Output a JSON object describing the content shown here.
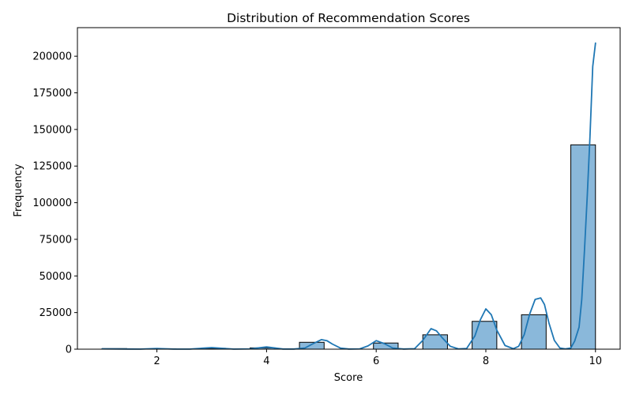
{
  "chart_data": {
    "type": "bar",
    "title": "Distribution of Recommendation Scores",
    "xlabel": "Score",
    "ylabel": "Frequency",
    "xlim": [
      0.55,
      10.45
    ],
    "ylim": [
      0,
      219500
    ],
    "x_ticks": [
      2,
      4,
      6,
      8,
      10
    ],
    "y_ticks": [
      0,
      25000,
      50000,
      75000,
      100000,
      125000,
      150000,
      175000,
      200000
    ],
    "bins": [
      {
        "start": 1.0,
        "end": 1.45,
        "value": 400
      },
      {
        "start": 1.9,
        "end": 2.35,
        "value": 300
      },
      {
        "start": 2.8,
        "end": 3.25,
        "value": 600
      },
      {
        "start": 3.7,
        "end": 4.15,
        "value": 900
      },
      {
        "start": 4.6,
        "end": 5.05,
        "value": 4700
      },
      {
        "start": 5.95,
        "end": 6.4,
        "value": 4200
      },
      {
        "start": 6.85,
        "end": 7.3,
        "value": 9800
      },
      {
        "start": 7.75,
        "end": 8.2,
        "value": 19000
      },
      {
        "start": 8.65,
        "end": 9.1,
        "value": 23500
      },
      {
        "start": 9.55,
        "end": 10.0,
        "value": 139500
      }
    ],
    "kde": {
      "x": [
        1.0,
        1.5,
        1.7,
        2.0,
        2.3,
        2.6,
        3.0,
        3.4,
        3.7,
        4.0,
        4.3,
        4.5,
        4.7,
        4.85,
        5.0,
        5.1,
        5.2,
        5.35,
        5.5,
        5.7,
        5.85,
        6.0,
        6.15,
        6.3,
        6.5,
        6.7,
        6.85,
        7.0,
        7.1,
        7.2,
        7.35,
        7.5,
        7.65,
        7.8,
        7.9,
        8.0,
        8.1,
        8.2,
        8.35,
        8.5,
        8.6,
        8.7,
        8.8,
        8.9,
        9.0,
        9.07,
        9.15,
        9.25,
        9.35,
        9.45,
        9.55,
        9.62,
        9.7,
        9.75,
        9.8,
        9.85,
        9.9,
        9.95,
        10.0
      ],
      "y": [
        200,
        100,
        50,
        500,
        50,
        50,
        1100,
        50,
        200,
        1500,
        100,
        100,
        800,
        3800,
        6500,
        5800,
        3500,
        700,
        100,
        200,
        2200,
        5800,
        3800,
        800,
        100,
        300,
        6000,
        14000,
        12500,
        8000,
        2000,
        200,
        500,
        9000,
        20000,
        27500,
        23500,
        13000,
        2500,
        300,
        2000,
        10000,
        24000,
        34000,
        35000,
        30500,
        18000,
        6000,
        800,
        200,
        800,
        5500,
        15000,
        34000,
        68000,
        105000,
        145000,
        193000,
        209000
      ]
    },
    "colors": {
      "bar_fill": "#8ab8da",
      "bar_edge": "#000000",
      "kde_line": "#1f77b4",
      "axis": "#000000"
    },
    "grid": false,
    "legend": "none"
  }
}
